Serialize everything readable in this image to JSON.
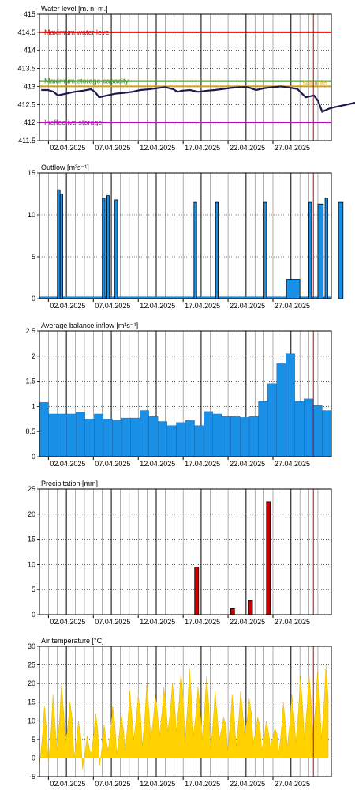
{
  "date_labels": [
    "02.04.2025",
    "07.04.2025",
    "12.04.2025",
    "17.04.2025",
    "22.04.2025",
    "27.04.2025"
  ],
  "colors": {
    "max_level": "#dd0000",
    "retention": "#3c8c1e",
    "ineffective": "#cc00cc",
    "summer": "#d4a000",
    "level_line": "#1a1a50",
    "flow_fill": "#1a8fe6",
    "precip": "#cc0000",
    "temp": "#ffd200",
    "now_line": "#cc0000"
  },
  "chart_data": [
    {
      "id": "water",
      "type": "line",
      "title": "Water level [m. n. m.]",
      "ylim": [
        411.5,
        415
      ],
      "yticks": [
        411.5,
        412,
        412.5,
        413,
        413.5,
        414,
        414.5,
        415
      ],
      "reference_lines": [
        {
          "name": "Maximum water level",
          "value": 414.5,
          "color_key": "max_level",
          "label_pos": "left"
        },
        {
          "name": "Maximum storage capacity",
          "value": 413.15,
          "color_key": "retention",
          "label_pos": "left"
        },
        {
          "name": "summer",
          "value": 413.0,
          "color_key": "summer",
          "label_pos": "right"
        },
        {
          "name": "Ineffective storage",
          "value": 412.0,
          "color_key": "ineffective",
          "label_pos": "left"
        }
      ],
      "x": [
        0,
        0.8,
        1.5,
        2,
        4,
        5,
        6,
        6.5,
        7,
        8,
        9,
        10,
        11,
        12,
        13,
        14,
        15,
        16,
        16.5,
        17,
        18,
        19,
        20,
        21,
        22,
        23,
        24,
        25,
        26,
        27,
        28,
        29,
        30,
        31,
        32,
        33,
        33.5,
        34,
        35,
        36,
        37,
        38,
        39
      ],
      "values": [
        412.9,
        412.9,
        412.85,
        412.75,
        412.85,
        412.88,
        412.92,
        412.85,
        412.7,
        412.75,
        412.8,
        412.82,
        412.85,
        412.9,
        412.92,
        412.95,
        412.98,
        412.92,
        412.85,
        412.88,
        412.9,
        412.85,
        412.88,
        412.9,
        412.93,
        412.96,
        412.98,
        412.98,
        412.9,
        412.95,
        412.98,
        413,
        412.97,
        412.93,
        412.7,
        412.75,
        412.6,
        412.3,
        412.4,
        412.45,
        412.5,
        412.55,
        412.6
      ]
    },
    {
      "id": "outflow",
      "type": "area",
      "title": "Outflow [m³s⁻¹]",
      "ylim": [
        0,
        15
      ],
      "yticks": [
        0,
        5,
        10,
        15
      ],
      "base": 0.25,
      "pulses": [
        {
          "start": 2.0,
          "end": 2.3,
          "value": 13.0
        },
        {
          "start": 2.3,
          "end": 2.6,
          "value": 12.5
        },
        {
          "start": 7.0,
          "end": 7.3,
          "value": 12.0
        },
        {
          "start": 7.5,
          "end": 7.8,
          "value": 12.3
        },
        {
          "start": 8.4,
          "end": 8.7,
          "value": 11.8
        },
        {
          "start": 17.2,
          "end": 17.5,
          "value": 11.5
        },
        {
          "start": 19.6,
          "end": 19.9,
          "value": 11.5
        },
        {
          "start": 25.0,
          "end": 25.3,
          "value": 11.5
        },
        {
          "start": 27.5,
          "end": 29.0,
          "value": 2.3
        },
        {
          "start": 30.0,
          "end": 30.3,
          "value": 11.5
        },
        {
          "start": 31.0,
          "end": 31.6,
          "value": 11.3
        },
        {
          "start": 31.8,
          "end": 32.1,
          "value": 12.0
        },
        {
          "start": 33.3,
          "end": 33.8,
          "value": 11.5
        }
      ]
    },
    {
      "id": "inflow",
      "type": "bar",
      "title": "Average balance inflow  [m³s⁻¹]",
      "ylim": [
        0,
        2.5
      ],
      "yticks": [
        0,
        0.5,
        1,
        1.5,
        2,
        2.5
      ],
      "values": [
        1.08,
        0.85,
        0.85,
        0.85,
        0.88,
        0.75,
        0.85,
        0.75,
        0.72,
        0.77,
        0.77,
        0.92,
        0.8,
        0.7,
        0.62,
        0.68,
        0.72,
        0.62,
        0.9,
        0.85,
        0.8,
        0.8,
        0.78,
        0.8,
        1.1,
        1.45,
        1.85,
        2.05,
        1.1,
        1.15,
        1.02,
        0.92
      ]
    },
    {
      "id": "precip",
      "type": "bar",
      "title": "Precipitation [mm]",
      "ylim": [
        0,
        25
      ],
      "yticks": [
        0,
        5,
        10,
        15,
        20,
        25
      ],
      "bars": [
        {
          "day": 17.5,
          "value": 9.5
        },
        {
          "day": 21.5,
          "value": 1.2
        },
        {
          "day": 23.5,
          "value": 2.8
        },
        {
          "day": 25.5,
          "value": 22.5
        }
      ]
    },
    {
      "id": "temp",
      "type": "area",
      "title": "Air temperature [°C]",
      "ylim": [
        -5,
        30
      ],
      "yticks": [
        -5,
        0,
        5,
        10,
        15,
        20,
        25,
        30
      ],
      "daily": [
        {
          "min": -1,
          "max": 14
        },
        {
          "min": -2,
          "max": 17
        },
        {
          "min": 2,
          "max": 20
        },
        {
          "min": 4,
          "max": 15
        },
        {
          "min": 0,
          "max": 10
        },
        {
          "min": -3,
          "max": 6
        },
        {
          "min": 1,
          "max": 12
        },
        {
          "min": -2,
          "max": 9
        },
        {
          "min": 2,
          "max": 14
        },
        {
          "min": 1,
          "max": 12
        },
        {
          "min": 2,
          "max": 18
        },
        {
          "min": 5,
          "max": 17
        },
        {
          "min": 3,
          "max": 20
        },
        {
          "min": 5,
          "max": 17
        },
        {
          "min": 6,
          "max": 19
        },
        {
          "min": 7,
          "max": 20
        },
        {
          "min": 7,
          "max": 23
        },
        {
          "min": 4,
          "max": 24
        },
        {
          "min": 6,
          "max": 19
        },
        {
          "min": 5,
          "max": 22
        },
        {
          "min": 2,
          "max": 18
        },
        {
          "min": 5,
          "max": 11
        },
        {
          "min": 2,
          "max": 17
        },
        {
          "min": 3,
          "max": 18
        },
        {
          "min": 6,
          "max": 16
        },
        {
          "min": 4,
          "max": 11
        },
        {
          "min": 2,
          "max": 10
        },
        {
          "min": 3,
          "max": 8
        },
        {
          "min": 1,
          "max": 15
        },
        {
          "min": 3,
          "max": 17
        },
        {
          "min": 4,
          "max": 22
        },
        {
          "min": 5,
          "max": 23
        },
        {
          "min": 6,
          "max": 23
        },
        {
          "min": 5,
          "max": 25
        }
      ]
    }
  ]
}
